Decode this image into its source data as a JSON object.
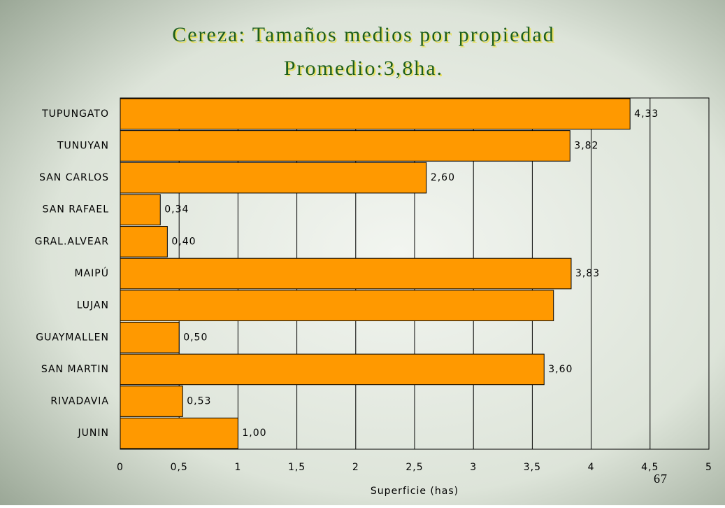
{
  "chart_data": {
    "type": "bar",
    "orientation": "horizontal",
    "title": "Cereza: Tamaños medios por propiedad",
    "subtitle": "Promedio:3,8ha.",
    "x_label": "Superficie (has)",
    "annotation": "67",
    "categories": [
      "TUPUNGATO",
      "TUNUYAN",
      "SAN CARLOS",
      "SAN RAFAEL",
      "GRAL.ALVEAR",
      "MAIPÚ",
      "LUJAN",
      "GUAYMALLEN",
      "SAN MARTIN",
      "RIVADAVIA",
      "JUNIN"
    ],
    "values": [
      4.33,
      3.82,
      2.6,
      0.34,
      0.4,
      3.83,
      3.68,
      0.5,
      3.6,
      0.53,
      1.0
    ],
    "value_labels": [
      "4,33",
      "3,82",
      "2,60",
      "0,34",
      "0,40",
      "3,83",
      null,
      "0,50",
      "3,60",
      "0,53",
      "1,00"
    ],
    "color": "#ff9900",
    "xlim": [
      0,
      5
    ],
    "xticks": [
      0,
      {
        "value": 0.5,
        "label": "0,5"
      },
      1,
      {
        "value": 1.5,
        "label": "1,5"
      },
      2,
      {
        "value": 2.5,
        "label": "2,5"
      },
      3,
      {
        "value": 3.5,
        "label": "3,5"
      },
      4,
      {
        "value": 4.5,
        "label": "4,5"
      },
      5
    ],
    "grid": true
  }
}
